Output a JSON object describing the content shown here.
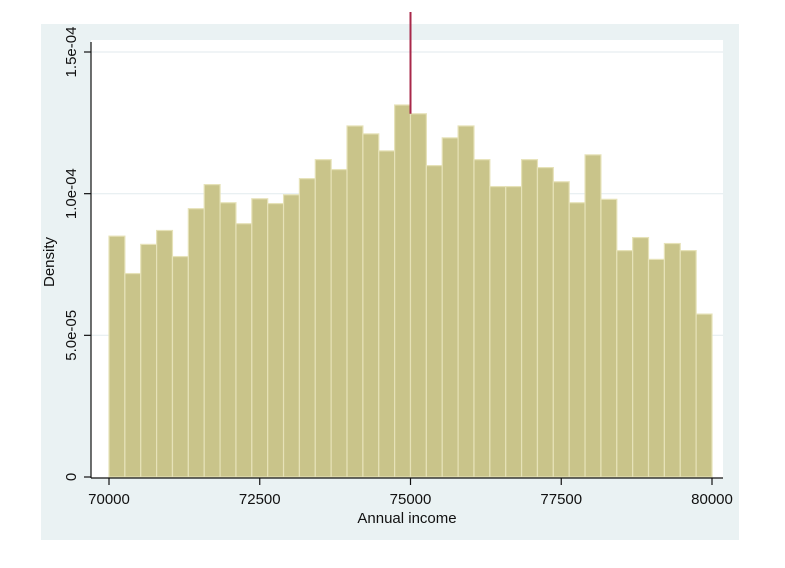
{
  "chart_data": {
    "type": "bar",
    "subtype": "histogram",
    "title": "",
    "xlabel": "Annual income",
    "ylabel": "Density",
    "xlim": [
      70000,
      80000
    ],
    "ylim": [
      0,
      0.00015
    ],
    "x_ticks": [
      70000,
      72500,
      75000,
      77500,
      80000
    ],
    "x_tick_labels": [
      "70000",
      "72500",
      "75000",
      "77500",
      "80000"
    ],
    "y_ticks": [
      0,
      5e-05,
      0.0001,
      0.00015
    ],
    "y_tick_labels": [
      "0",
      "5.0e-05",
      "1.0e-04",
      "1.5e-04"
    ],
    "grid": "horizontal",
    "legend": null,
    "bins": 38,
    "bin_start": 70000,
    "bin_end": 80000,
    "values": [
      8.5e-05,
      7.18e-05,
      8.21e-05,
      8.7e-05,
      7.78e-05,
      9.47e-05,
      0.0001032,
      9.68e-05,
      8.94e-05,
      9.82e-05,
      9.65e-05,
      9.96e-05,
      0.0001053,
      0.000112,
      0.0001085,
      0.0001239,
      0.0001211,
      0.0001151,
      0.0001313,
      0.0001282,
      0.0001099,
      0.0001197,
      0.0001239,
      0.000112,
      0.0001025,
      0.0001025,
      0.000112,
      0.0001092,
      0.0001042,
      9.68e-05,
      0.0001137,
      9.8e-05,
      7.99e-05,
      8.45e-05,
      7.68e-05,
      8.24e-05,
      7.99e-05,
      5.75e-05
    ],
    "annotations": [
      {
        "type": "vertical-line",
        "x": 75000,
        "color": "#a8284a"
      }
    ],
    "colors": {
      "bar_fill": "#c9c48a",
      "bar_edge": "#e6e2b8",
      "plot_bg": "#ffffff",
      "outer_bg": "#eaf2f3",
      "grid": "#e6eef0",
      "axis": "#111111",
      "reference_line": "#a8284a"
    }
  }
}
